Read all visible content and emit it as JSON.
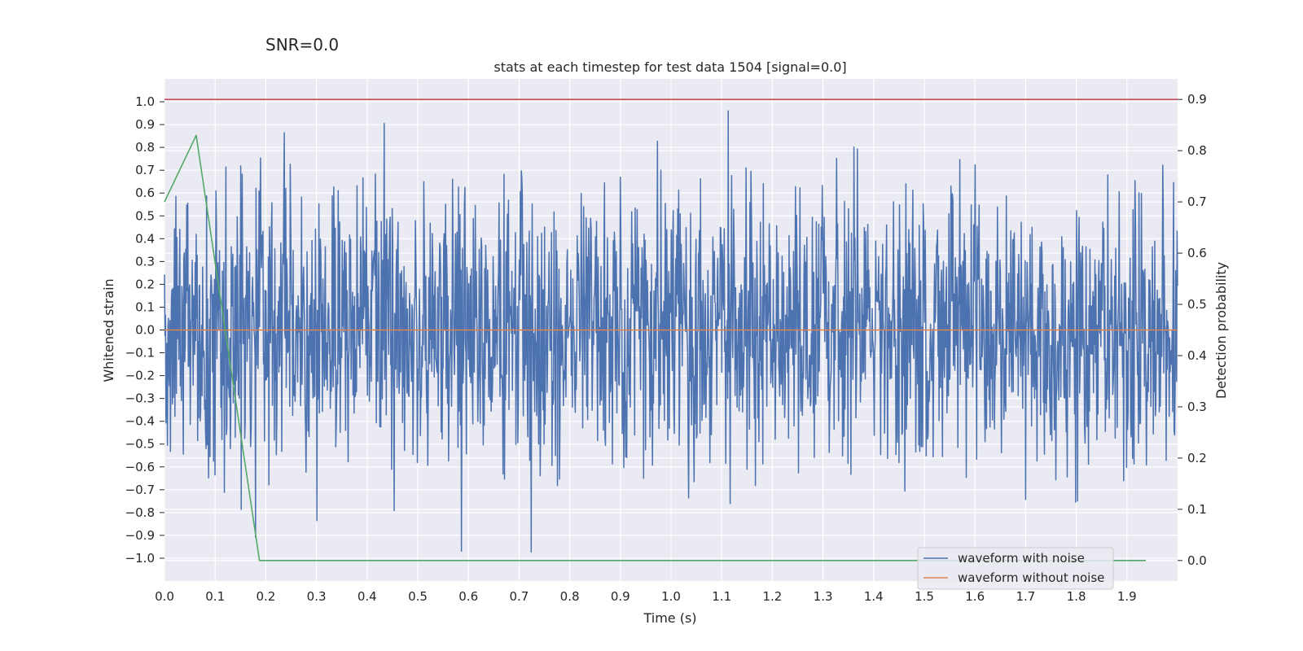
{
  "suptitle": "SNR=0.0",
  "chart_data": {
    "type": "line",
    "title": "stats at each timestep for test data 1504 [signal=0.0]",
    "xlabel": "Time (s)",
    "ylabel": "Whitened strain",
    "y2label": "Detection probability",
    "xlim": [
      0.0,
      2.0
    ],
    "ylim": [
      -1.1,
      1.1
    ],
    "y2lim": [
      -0.04,
      0.94
    ],
    "xticks": [
      "0.0",
      "0.1",
      "0.2",
      "0.3",
      "0.4",
      "0.5",
      "0.6",
      "0.7",
      "0.8",
      "0.9",
      "1.0",
      "1.1",
      "1.2",
      "1.3",
      "1.4",
      "1.5",
      "1.6",
      "1.7",
      "1.8",
      "1.9"
    ],
    "yticks": [
      "1.0",
      "0.9",
      "0.8",
      "0.7",
      "0.6",
      "0.5",
      "0.4",
      "0.3",
      "0.2",
      "0.1",
      "0.0",
      "-0.1",
      "-0.2",
      "-0.3",
      "-0.4",
      "-0.5",
      "-0.6",
      "-0.7",
      "-0.8",
      "-0.9",
      "-1.0"
    ],
    "y2ticks": [
      "0.9",
      "0.8",
      "0.7",
      "0.6",
      "0.5",
      "0.4",
      "0.3",
      "0.2",
      "0.1",
      "0.0"
    ],
    "grid": true,
    "legend_position": "lower-right",
    "series": [
      {
        "name": "waveform with noise",
        "axis": "left",
        "color": "#4c72b0",
        "noise": {
          "samples": 2048,
          "x_start": 0.0,
          "x_end": 2.0,
          "std": 0.3,
          "min": -1.0,
          "max": 0.96,
          "seed": 1504
        }
      },
      {
        "name": "waveform without noise",
        "axis": "left",
        "color": "#dd8452",
        "x": [
          0.0,
          2.0
        ],
        "y": [
          0.0,
          0.0
        ]
      },
      {
        "name": "detection probability",
        "axis": "right",
        "color": "#55a868",
        "x": [
          0.0,
          0.0625,
          0.1875,
          0.25,
          0.3125,
          1.9375
        ],
        "y": [
          0.7,
          0.83,
          0.0,
          0.0,
          0.0,
          0.0
        ]
      },
      {
        "name": "threshold",
        "axis": "right",
        "color": "#c44e52",
        "x": [
          0.0,
          2.0
        ],
        "y": [
          0.9,
          0.9
        ]
      }
    ],
    "legend": [
      "waveform with noise",
      "waveform without noise"
    ]
  }
}
